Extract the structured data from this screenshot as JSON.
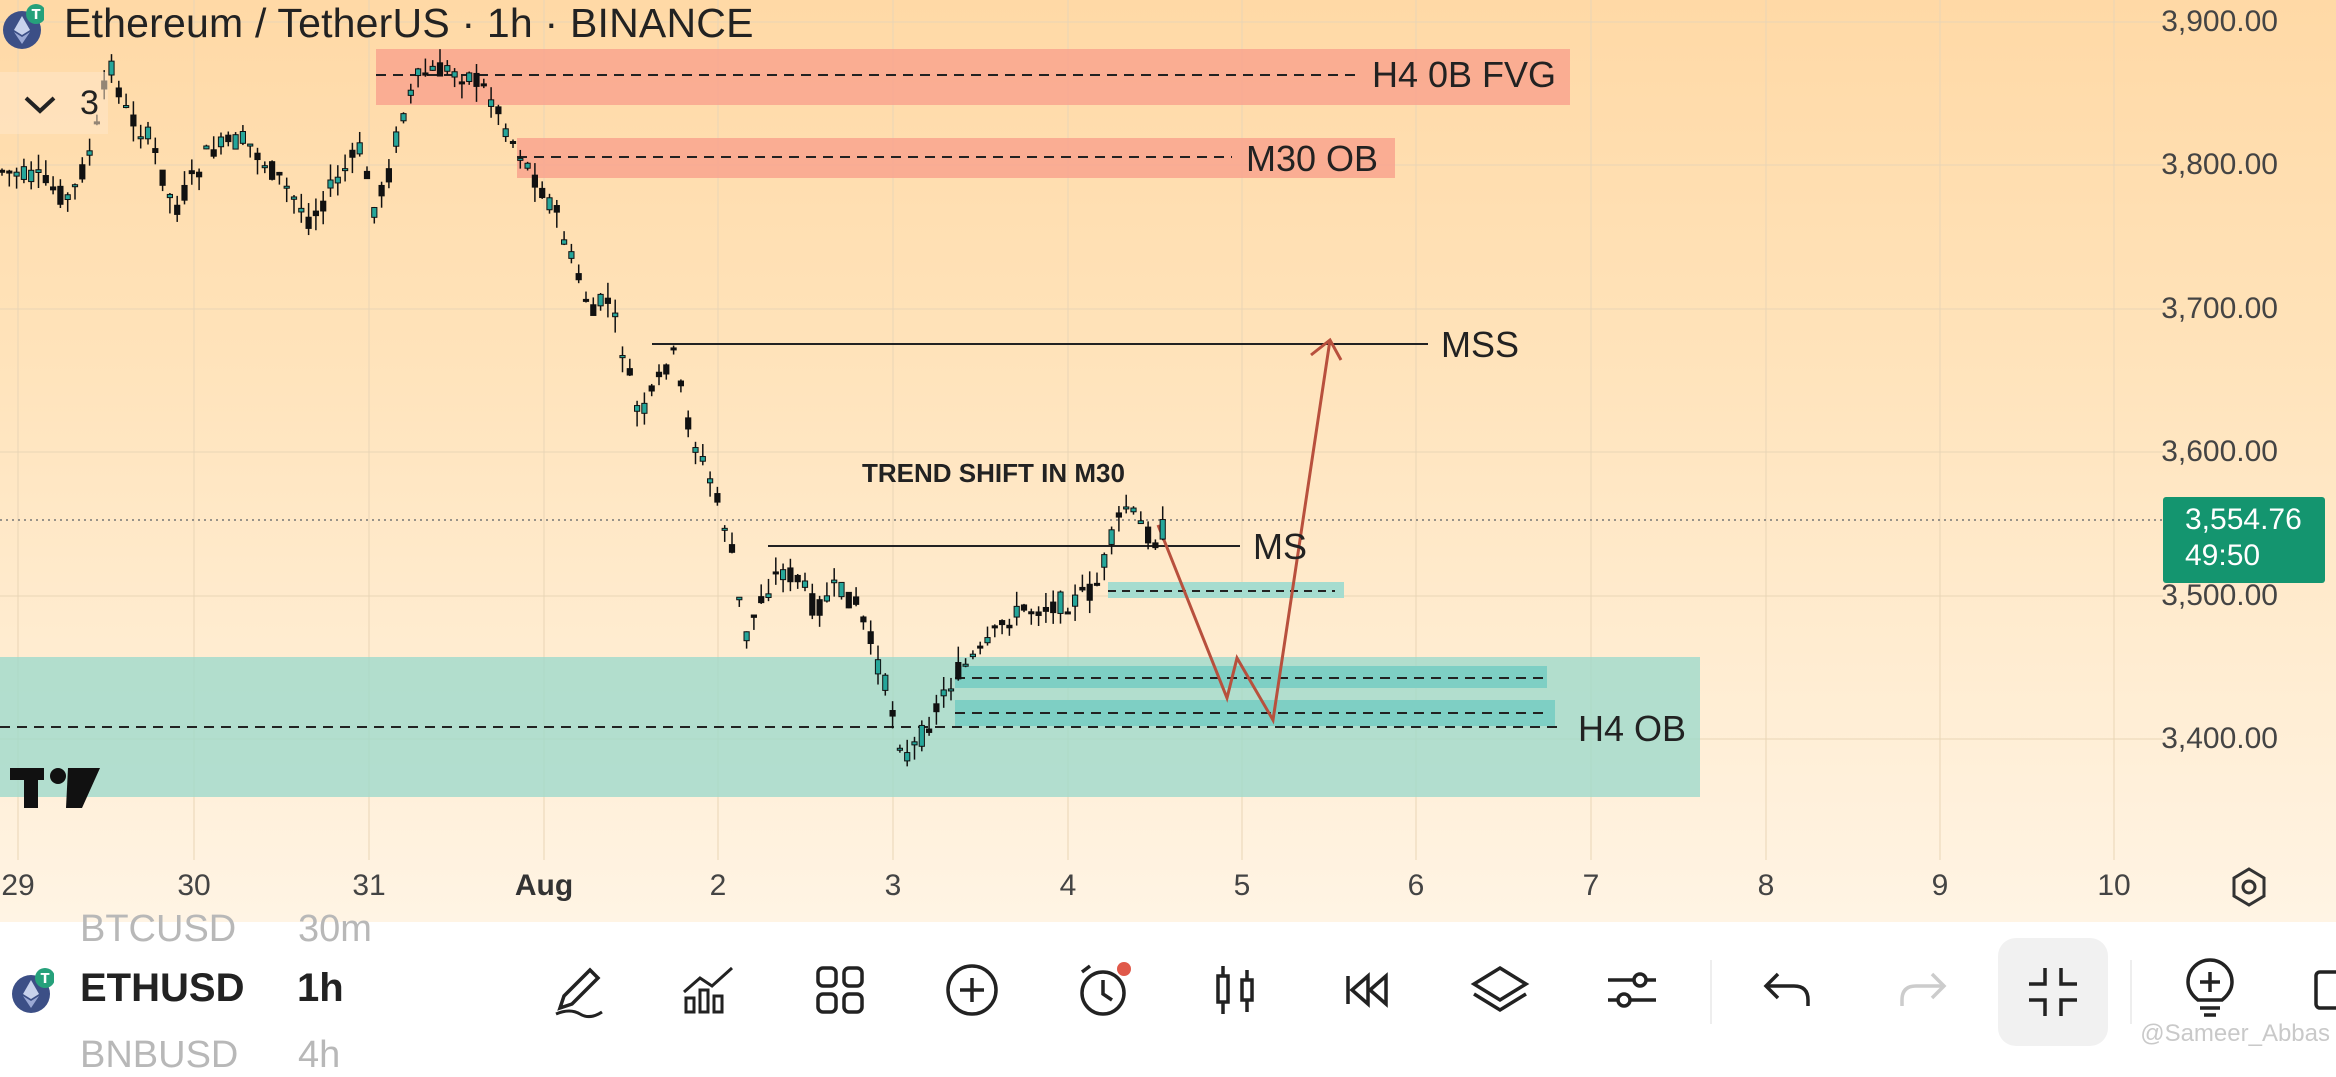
{
  "header": {
    "title": "Ethereum / TetherUS · 1h · BINANCE",
    "indicator_count": "3"
  },
  "price_axis": {
    "labels": [
      "3,900.00",
      "3,800.00",
      "3,700.00",
      "3,600.00",
      "3,500.00",
      "3,400.00"
    ],
    "current_price": "3,554.76",
    "countdown": "49:50"
  },
  "date_axis": {
    "labels": [
      "29",
      "30",
      "31",
      "Aug",
      "2",
      "3",
      "4",
      "5",
      "6",
      "7",
      "8",
      "9",
      "10"
    ]
  },
  "annotations": {
    "h4_ob_fvg": "H4 0B FVG",
    "m30_ob": "M30 OB",
    "mss": "MSS",
    "trend_shift": "TREND SHIFT IN M30",
    "ms": "MS",
    "h4_ob": "H4 OB"
  },
  "colors": {
    "supply_zone": "#f9a48e",
    "demand_zone": "#9fd9cc",
    "candle": "#111111",
    "badge": "#14956f",
    "projection": "#b8503d"
  },
  "bottom_bar": {
    "watchlist": [
      {
        "symbol": "BTCUSD",
        "interval": "30m"
      },
      {
        "symbol": "ETHUSD",
        "interval": "1h"
      },
      {
        "symbol": "BNBUSD",
        "interval": "4h"
      }
    ],
    "active_symbol": "ETHUSD",
    "active_interval": "1h",
    "watermark": "@Sameer_Abbas"
  }
}
